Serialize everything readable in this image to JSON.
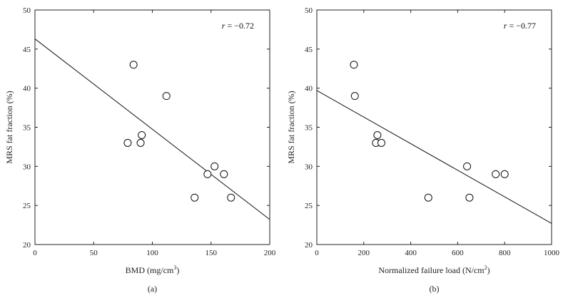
{
  "chart_data": [
    {
      "type": "scatter",
      "panel_label": "(a)",
      "xlabel_main": "BMD (mg/cm",
      "xlabel_sup": "3",
      "xlabel_end": ")",
      "ylabel": "MRS fat fraction (%)",
      "annotation": "r = −0.72",
      "xlim": [
        0,
        200
      ],
      "ylim": [
        20,
        50
      ],
      "xticks": [
        "0",
        "50",
        "100",
        "150",
        "200"
      ],
      "yticks": [
        "20",
        "25",
        "30",
        "35",
        "40",
        "45",
        "50"
      ],
      "points": [
        {
          "x": 84,
          "y": 43
        },
        {
          "x": 112,
          "y": 39
        },
        {
          "x": 91,
          "y": 34
        },
        {
          "x": 79,
          "y": 33
        },
        {
          "x": 90,
          "y": 33
        },
        {
          "x": 153,
          "y": 30
        },
        {
          "x": 147,
          "y": 29
        },
        {
          "x": 161,
          "y": 29
        },
        {
          "x": 136,
          "y": 26
        },
        {
          "x": 167,
          "y": 26
        }
      ],
      "fit_line": {
        "x": [
          0,
          200
        ],
        "y": [
          46.3,
          23.2
        ]
      }
    },
    {
      "type": "scatter",
      "panel_label": "(b)",
      "xlabel_main": "Normalized failure load (N/cm",
      "xlabel_sup": "2",
      "xlabel_end": ")",
      "ylabel": "MRS fat fraction (%)",
      "annotation": "r = −0.77",
      "xlim": [
        0,
        1000
      ],
      "ylim": [
        20,
        50
      ],
      "xticks": [
        "0",
        "200",
        "400",
        "600",
        "800",
        "1000"
      ],
      "yticks": [
        "20",
        "25",
        "30",
        "35",
        "40",
        "45",
        "50"
      ],
      "points": [
        {
          "x": 158,
          "y": 43
        },
        {
          "x": 162,
          "y": 39
        },
        {
          "x": 258,
          "y": 34
        },
        {
          "x": 252,
          "y": 33
        },
        {
          "x": 275,
          "y": 33
        },
        {
          "x": 640,
          "y": 30
        },
        {
          "x": 762,
          "y": 29
        },
        {
          "x": 800,
          "y": 29
        },
        {
          "x": 475,
          "y": 26
        },
        {
          "x": 650,
          "y": 26
        }
      ],
      "fit_line": {
        "x": [
          0,
          1000
        ],
        "y": [
          39.7,
          22.7
        ]
      }
    }
  ]
}
